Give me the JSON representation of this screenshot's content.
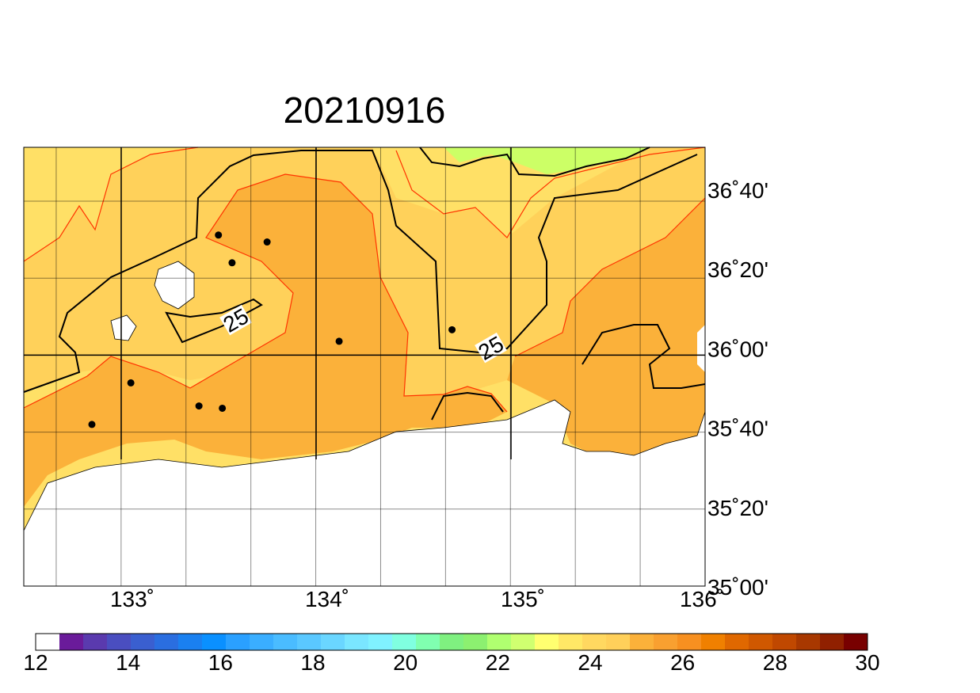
{
  "title": "20210916",
  "map": {
    "lon_range": [
      132.5,
      136
    ],
    "lat_range": [
      35.0,
      36.9
    ],
    "grid_lines": true,
    "x_tick_labels": [
      {
        "value": 133,
        "text": "133˚"
      },
      {
        "value": 134,
        "text": "134˚"
      },
      {
        "value": 135,
        "text": "135˚"
      },
      {
        "value": 136,
        "text": "136˚"
      }
    ],
    "y_tick_labels": [
      {
        "value": 36.6667,
        "text": "36˚40'"
      },
      {
        "value": 36.3333,
        "text": "36˚20'"
      },
      {
        "value": 36.0,
        "text": "36˚00'"
      },
      {
        "value": 35.6667,
        "text": "35˚40'"
      },
      {
        "value": 35.3333,
        "text": "35˚20'"
      },
      {
        "value": 35.0,
        "text": "35˚00'"
      }
    ],
    "contour_label": "25",
    "colors": {
      "land": "#ffffff",
      "t24": "#ffe066",
      "t25": "#ffd15a",
      "t26": "#fbb13a",
      "t23": "#ccff66",
      "contour": "#000000",
      "isotherm": "#ff3300"
    }
  },
  "stations": [
    {
      "lon": 133.5,
      "lat": 36.52
    },
    {
      "lon": 133.75,
      "lat": 36.49
    },
    {
      "lon": 133.57,
      "lat": 36.4
    },
    {
      "lon": 134.12,
      "lat": 36.06
    },
    {
      "lon": 134.7,
      "lat": 36.11
    },
    {
      "lon": 133.05,
      "lat": 35.88
    },
    {
      "lon": 133.4,
      "lat": 35.78
    },
    {
      "lon": 133.52,
      "lat": 35.77
    },
    {
      "lon": 132.85,
      "lat": 35.7
    }
  ],
  "colorbar": {
    "min": 12,
    "max": 30,
    "labels": [
      "12",
      "14",
      "16",
      "18",
      "20",
      "22",
      "24",
      "26",
      "28",
      "30"
    ],
    "colors": [
      "#ffffff",
      "#6a1b9a",
      "#5a3aae",
      "#4a4ec0",
      "#3a5fd0",
      "#2a6ee0",
      "#1a80f0",
      "#0a90ff",
      "#2aa0ff",
      "#3aaeff",
      "#4abcff",
      "#5ac8ff",
      "#6ad6ff",
      "#7ae6ff",
      "#80f2ff",
      "#80ffe0",
      "#80ffb0",
      "#7ff080",
      "#8cf070",
      "#b0ff70",
      "#d0ff70",
      "#ffff70",
      "#ffe866",
      "#ffd860",
      "#ffd05a",
      "#fbb13a",
      "#f9a030",
      "#f79020",
      "#f08000",
      "#e06800",
      "#d05800",
      "#c04800",
      "#a83800",
      "#902000",
      "#780000"
    ]
  }
}
